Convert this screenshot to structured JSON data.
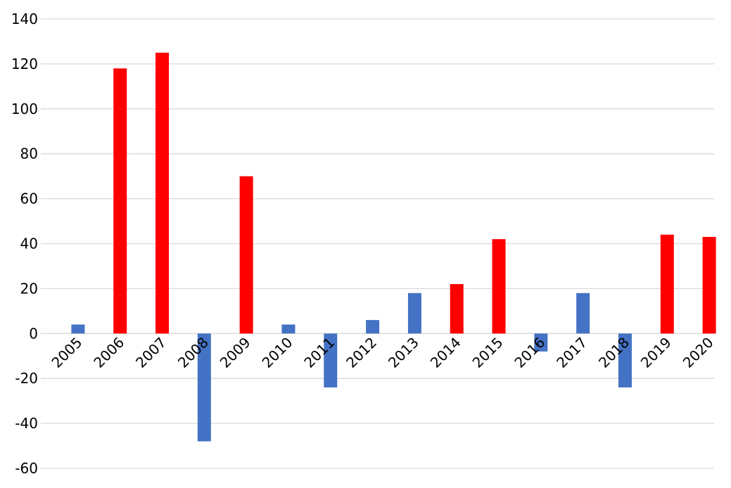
{
  "chart_data": {
    "type": "bar",
    "title": "",
    "xlabel": "",
    "ylabel": "",
    "ylim": [
      -60,
      140
    ],
    "ytick_step": 20,
    "grid": true,
    "legend": "none",
    "categories": [
      "2005",
      "2006",
      "2007",
      "2008",
      "2009",
      "2010",
      "2011",
      "2012",
      "2013",
      "2014",
      "2015",
      "2016",
      "2017",
      "2018",
      "2019",
      "2020"
    ],
    "values": [
      4,
      118,
      125,
      -48,
      70,
      4,
      -24,
      6,
      18,
      22,
      42,
      -8,
      18,
      -24,
      44,
      43
    ],
    "bar_colors": [
      "#4472C4",
      "#FF0000",
      "#FF0000",
      "#4472C4",
      "#FF0000",
      "#4472C4",
      "#4472C4",
      "#4472C4",
      "#4472C4",
      "#FF0000",
      "#FF0000",
      "#4472C4",
      "#4472C4",
      "#4472C4",
      "#FF0000",
      "#FF0000"
    ],
    "colors": {
      "blue": "#4472C4",
      "red": "#FF0000",
      "grid": "#D9D9D9"
    }
  }
}
